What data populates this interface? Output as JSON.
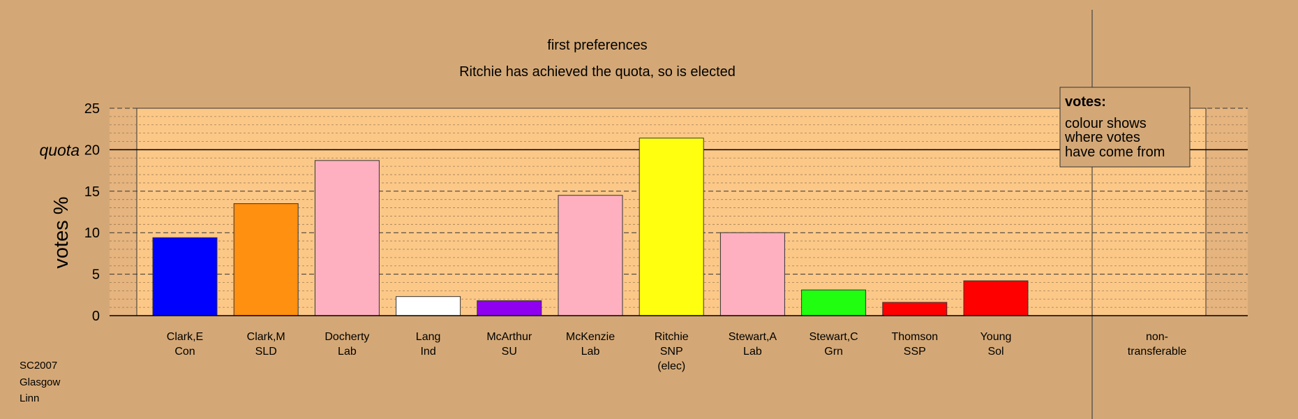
{
  "chart_data": {
    "type": "bar",
    "title": "first preferences",
    "subtitle": "Ritchie has achieved the quota, so is elected",
    "ylabel": "votes %",
    "ylim": [
      0,
      25
    ],
    "yticks": [
      0,
      5,
      10,
      15,
      20,
      25
    ],
    "quota_label": "quota",
    "quota": 20,
    "categories": [
      {
        "label": [
          "Clark,E",
          "Con"
        ],
        "value": 9.4,
        "color": "#0000ff"
      },
      {
        "label": [
          "Clark,M",
          "SLD"
        ],
        "value": 13.5,
        "color": "#ff9010"
      },
      {
        "label": [
          "Docherty",
          "Lab"
        ],
        "value": 18.7,
        "color": "#ffb0c0"
      },
      {
        "label": [
          "Lang",
          "Ind"
        ],
        "value": 2.3,
        "color": "#ffffff"
      },
      {
        "label": [
          "McArthur",
          "SU"
        ],
        "value": 1.8,
        "color": "#9000f0"
      },
      {
        "label": [
          "McKenzie",
          "Lab"
        ],
        "value": 14.5,
        "color": "#ffb0c0"
      },
      {
        "label": [
          "Ritchie",
          "SNP",
          "(elec)"
        ],
        "value": 21.4,
        "color": "#ffff10"
      },
      {
        "label": [
          "Stewart,A",
          "Lab"
        ],
        "value": 10.0,
        "color": "#ffb0c0"
      },
      {
        "label": [
          "Stewart,C",
          "Grn"
        ],
        "value": 3.1,
        "color": "#20ff10"
      },
      {
        "label": [
          "Thomson",
          "SSP"
        ],
        "value": 1.6,
        "color": "#ff0000"
      },
      {
        "label": [
          "Young",
          "Sol"
        ],
        "value": 4.2,
        "color": "#ff0000"
      }
    ],
    "nontransferable": {
      "label": [
        "non-",
        "transferable"
      ],
      "value": 0
    },
    "legend": {
      "title": "votes:",
      "lines": [
        "colour shows",
        "where votes",
        "have come from"
      ]
    },
    "colors": {
      "background": "#d4a876",
      "plot_area": "#fcc888",
      "outside_band": "#e5b47f"
    }
  },
  "notes": [
    "SC2007",
    "Glasgow",
    "Linn"
  ]
}
